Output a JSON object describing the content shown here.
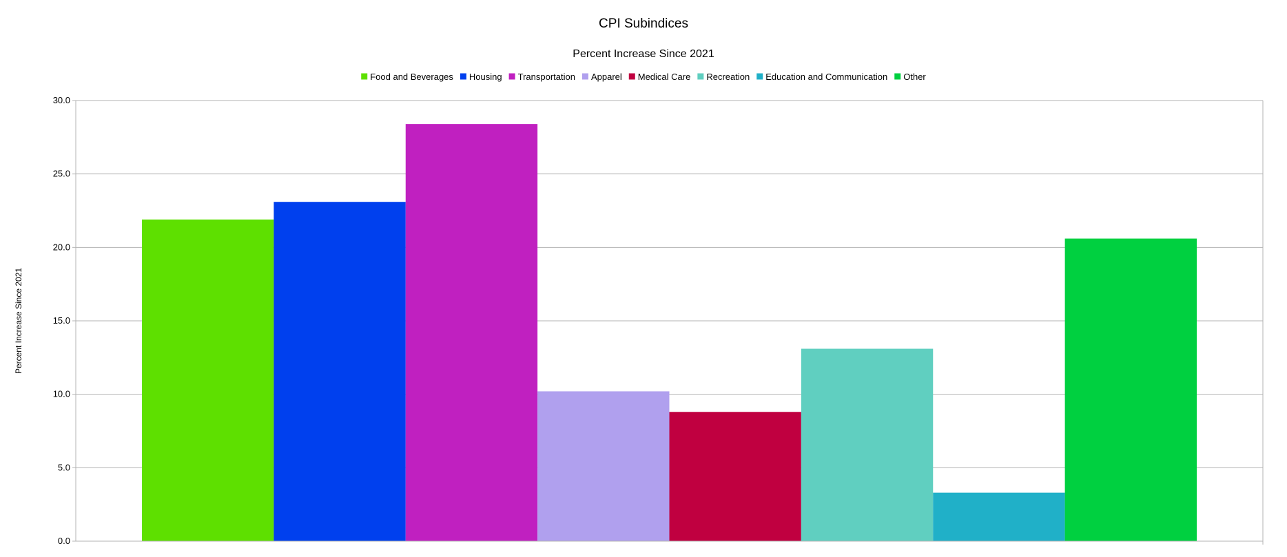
{
  "chart_data": {
    "type": "bar",
    "title": "CPI Subindices",
    "subtitle": "Percent Increase Since 2021",
    "xlabel": "",
    "ylabel": "Percent Increase Since 2021",
    "ylim": [
      0,
      30
    ],
    "yticks": [
      "0.0",
      "5.0",
      "10.0",
      "15.0",
      "20.0",
      "25.0",
      "30.0"
    ],
    "grid": true,
    "legend_position": "top",
    "categories": [
      ""
    ],
    "series": [
      {
        "name": "Food and Beverages",
        "values": [
          21.9
        ],
        "color": "#5ee000"
      },
      {
        "name": "Housing",
        "values": [
          23.1
        ],
        "color": "#0040ee"
      },
      {
        "name": "Transportation",
        "values": [
          28.4
        ],
        "color": "#c020c0"
      },
      {
        "name": "Apparel",
        "values": [
          10.2
        ],
        "color": "#b0a0ee"
      },
      {
        "name": "Medical Care",
        "values": [
          8.8
        ],
        "color": "#c00040"
      },
      {
        "name": "Recreation",
        "values": [
          13.1
        ],
        "color": "#60cfc0"
      },
      {
        "name": "Education and Communication",
        "values": [
          3.3
        ],
        "color": "#20b0c8"
      },
      {
        "name": "Other",
        "values": [
          20.6
        ],
        "color": "#00d040"
      }
    ]
  }
}
